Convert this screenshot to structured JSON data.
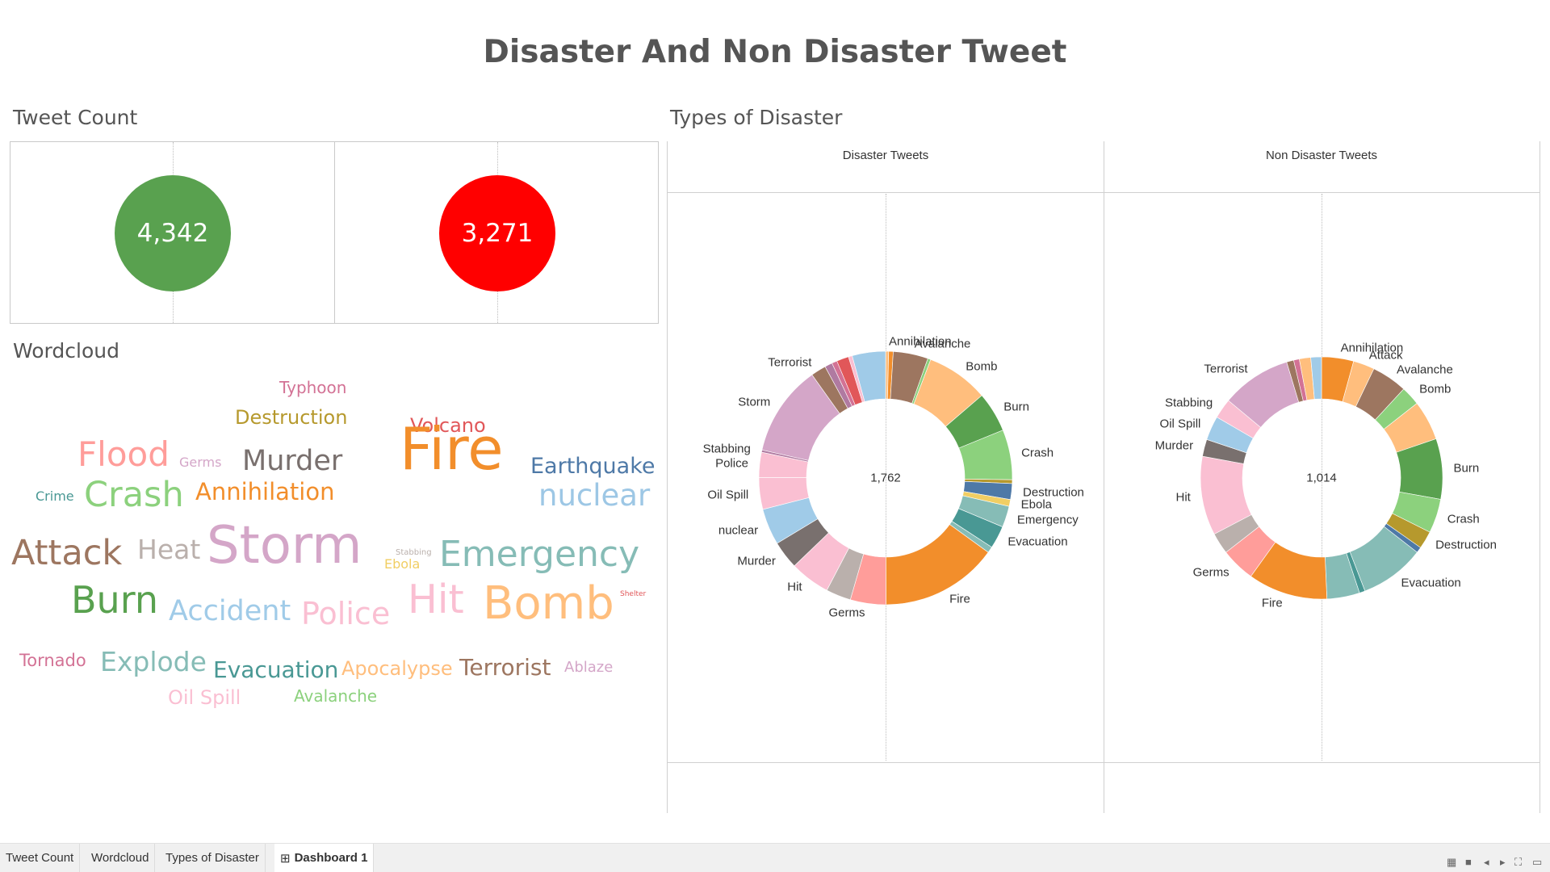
{
  "dashboard": {
    "title": "Disaster And Non Disaster Tweet"
  },
  "tweet_count": {
    "title": "Tweet Count",
    "disaster_count": "4,342",
    "non_disaster_count": "3,271",
    "colors": {
      "disaster": "#59a14f",
      "non_disaster": "#ff0000"
    }
  },
  "wordcloud": {
    "title": "Wordcloud",
    "words": [
      {
        "text": "Typhoon",
        "size": 20,
        "color": "#d37295"
      },
      {
        "text": "Destruction",
        "size": 24,
        "color": "#b6992d"
      },
      {
        "text": "Volcano",
        "size": 24,
        "color": "#e15759"
      },
      {
        "text": "Flood",
        "size": 42,
        "color": "#ff9d9a"
      },
      {
        "text": "Germs",
        "size": 16,
        "color": "#d4a6c8"
      },
      {
        "text": "Murder",
        "size": 35,
        "color": "#79706e"
      },
      {
        "text": "Fire",
        "size": 72,
        "color": "#f28e2b"
      },
      {
        "text": "Earthquake",
        "size": 27,
        "color": "#4e79a7"
      },
      {
        "text": "Crime",
        "size": 16,
        "color": "#499894"
      },
      {
        "text": "Crash",
        "size": 43,
        "color": "#8cd17d"
      },
      {
        "text": "Annihilation",
        "size": 29,
        "color": "#f28e2b"
      },
      {
        "text": "nuclear",
        "size": 37,
        "color": "#9dc7e5"
      },
      {
        "text": "Attack",
        "size": 43,
        "color": "#9d7660"
      },
      {
        "text": "Heat",
        "size": 33,
        "color": "#bab0ac"
      },
      {
        "text": "Storm",
        "size": 64,
        "color": "#d4a6c8"
      },
      {
        "text": "Stabbing",
        "size": 10,
        "color": "#bab0ac"
      },
      {
        "text": "Ebola",
        "size": 16,
        "color": "#f1ce63"
      },
      {
        "text": "Emergency",
        "size": 44,
        "color": "#86bcb6"
      },
      {
        "text": "Shelter",
        "size": 9,
        "color": "#e15759"
      },
      {
        "text": "Burn",
        "size": 46,
        "color": "#59a14f"
      },
      {
        "text": "Accident",
        "size": 35,
        "color": "#a0cbe8"
      },
      {
        "text": "Police",
        "size": 38,
        "color": "#fabfd2"
      },
      {
        "text": "Hit",
        "size": 49,
        "color": "#fabfd2"
      },
      {
        "text": "Bomb",
        "size": 56,
        "color": "#ffbe7d"
      },
      {
        "text": "Tornado",
        "size": 21,
        "color": "#d37295"
      },
      {
        "text": "Explode",
        "size": 33,
        "color": "#86bcb6"
      },
      {
        "text": "Evacuation",
        "size": 28,
        "color": "#499894"
      },
      {
        "text": "Apocalypse",
        "size": 24,
        "color": "#ffbe7d"
      },
      {
        "text": "Terrorist",
        "size": 28,
        "color": "#9d7660"
      },
      {
        "text": "Ablaze",
        "size": 18,
        "color": "#d4a6c8"
      },
      {
        "text": "Oil Spill",
        "size": 24,
        "color": "#fabfd2"
      },
      {
        "text": "Avalanche",
        "size": 20,
        "color": "#8cd17d"
      }
    ]
  },
  "types_of_disaster": {
    "title": "Types of Disaster",
    "columns": [
      "Disaster Tweets",
      "Non Disaster Tweets"
    ]
  },
  "chart_data": [
    {
      "type": "pie",
      "title": "Disaster Tweets",
      "total": "1,762",
      "slices": [
        {
          "label": "Annihilation",
          "value": 0.4,
          "color": "#ffbe7d"
        },
        {
          "label": "",
          "value": 0.6,
          "color": "#f28e2b"
        },
        {
          "label": "Avalanche",
          "value": 4.6,
          "color": "#9d7660"
        },
        {
          "label": "",
          "value": 0.4,
          "color": "#8cd17d"
        },
        {
          "label": "Bomb",
          "value": 8.2,
          "color": "#ffbe7d"
        },
        {
          "label": "Burn",
          "value": 5.3,
          "color": "#59a14f"
        },
        {
          "label": "Crash",
          "value": 6.6,
          "color": "#8cd17d"
        },
        {
          "label": "",
          "value": 0.5,
          "color": "#b6992d"
        },
        {
          "label": "Destruction",
          "value": 2.1,
          "color": "#4e79a7"
        },
        {
          "label": "Ebola",
          "value": 0.9,
          "color": "#f1ce63"
        },
        {
          "label": "Emergency",
          "value": 2.8,
          "color": "#86bcb6"
        },
        {
          "label": "Evacuation",
          "value": 3.0,
          "color": "#499894"
        },
        {
          "label": "",
          "value": 0.8,
          "color": "#86bcb6"
        },
        {
          "label": "Fire",
          "value": 15.5,
          "color": "#f28e2b"
        },
        {
          "label": "Germs",
          "value": 4.7,
          "color": "#ff9d9a"
        },
        {
          "label": "",
          "value": 3.3,
          "color": "#bab0ac"
        },
        {
          "label": "Hit",
          "value": 5.3,
          "color": "#fabfd2"
        },
        {
          "label": "Murder",
          "value": 3.7,
          "color": "#79706e"
        },
        {
          "label": "nuclear",
          "value": 4.8,
          "color": "#a0cbe8"
        },
        {
          "label": "Oil Spill",
          "value": 4.2,
          "color": "#fabfd2"
        },
        {
          "label": "Police",
          "value": 3.3,
          "color": "#fabfd2"
        },
        {
          "label": "Stabbing",
          "value": 0.3,
          "color": "#b07aa1"
        },
        {
          "label": "Storm",
          "value": 12.0,
          "color": "#d4a6c8"
        },
        {
          "label": "Terrorist",
          "value": 2.0,
          "color": "#9d7660"
        },
        {
          "label": "",
          "value": 1.0,
          "color": "#b07aa1"
        },
        {
          "label": "",
          "value": 0.7,
          "color": "#d37295"
        },
        {
          "label": "",
          "value": 1.6,
          "color": "#e15759"
        },
        {
          "label": "",
          "value": 0.5,
          "color": "#fabfd2"
        },
        {
          "label": "",
          "value": 4.4,
          "color": "#a0cbe8"
        }
      ]
    },
    {
      "type": "pie",
      "title": "Non Disaster Tweets",
      "total": "1,014",
      "slices": [
        {
          "label": "Annihilation",
          "value": 4.5,
          "color": "#f28e2b"
        },
        {
          "label": "Attack",
          "value": 3.0,
          "color": "#ffbe7d"
        },
        {
          "label": "Avalanche",
          "value": 5.0,
          "color": "#9d7660"
        },
        {
          "label": "Bomb",
          "value": 2.7,
          "color": "#8cd17d"
        },
        {
          "label": "",
          "value": 5.6,
          "color": "#ffbe7d"
        },
        {
          "label": "Burn",
          "value": 8.5,
          "color": "#59a14f"
        },
        {
          "label": "Crash",
          "value": 4.8,
          "color": "#8cd17d"
        },
        {
          "label": "Destruction",
          "value": 2.5,
          "color": "#b6992d"
        },
        {
          "label": "",
          "value": 0.8,
          "color": "#4e79a7"
        },
        {
          "label": "Evacuation",
          "value": 9.1,
          "color": "#86bcb6"
        },
        {
          "label": "",
          "value": 0.8,
          "color": "#499894"
        },
        {
          "label": "",
          "value": 4.6,
          "color": "#86bcb6"
        },
        {
          "label": "Fire",
          "value": 11.2,
          "color": "#f28e2b"
        },
        {
          "label": "Germs",
          "value": 4.8,
          "color": "#ff9d9a"
        },
        {
          "label": "",
          "value": 3.0,
          "color": "#bab0ac"
        },
        {
          "label": "Hit",
          "value": 11.1,
          "color": "#fabfd2"
        },
        {
          "label": "Murder",
          "value": 2.4,
          "color": "#79706e"
        },
        {
          "label": "Oil Spill",
          "value": 3.4,
          "color": "#a0cbe8"
        },
        {
          "label": "Stabbing",
          "value": 2.8,
          "color": "#fabfd2"
        },
        {
          "label": "Terrorist",
          "value": 9.8,
          "color": "#d4a6c8"
        },
        {
          "label": "",
          "value": 1.0,
          "color": "#9d7660"
        },
        {
          "label": "",
          "value": 0.8,
          "color": "#d37295"
        },
        {
          "label": "",
          "value": 1.6,
          "color": "#ffbe7d"
        },
        {
          "label": "",
          "value": 1.5,
          "color": "#a0cbe8"
        }
      ]
    }
  ],
  "tabs": [
    {
      "label": "Tweet Count",
      "active": false
    },
    {
      "label": "Wordcloud",
      "active": false
    },
    {
      "label": "Types of Disaster",
      "active": false
    },
    {
      "label": "Dashboard 1",
      "active": true,
      "icon": "dashboard-grid-icon"
    }
  ],
  "nav_controls": [
    "grid-view-icon",
    "single-view-icon",
    "prev-icon",
    "next-icon",
    "fullscreen-icon",
    "present-icon"
  ]
}
